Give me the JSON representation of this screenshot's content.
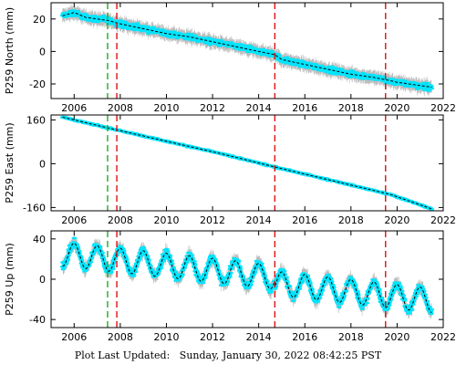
{
  "chart_data": [
    {
      "type": "scatter",
      "ylabel": "P259 North (mm)",
      "xlim": [
        2005.0,
        2022.0
      ],
      "ylim": [
        -29,
        30
      ],
      "xticks": [
        2006,
        2008,
        2010,
        2012,
        2014,
        2016,
        2018,
        2020,
        2022
      ],
      "yticks": [
        20,
        0,
        -20
      ],
      "grid": false,
      "series": [
        {
          "values_note": "",
          "x": [
            2005.5,
            2006.0,
            2006.5,
            2007.0,
            2007.5,
            2008.0,
            2009.0,
            2010.0,
            2011.0,
            2012.0,
            2013.0,
            2014.0,
            2014.7,
            2015.0,
            2016.0,
            2017.0,
            2018.0,
            2019.0,
            2019.7,
            2020.0,
            2021.0,
            2021.5
          ],
          "y": [
            22,
            24,
            21,
            20,
            19,
            17,
            14,
            11,
            9,
            6,
            3,
            0,
            -2,
            -5,
            -8,
            -11,
            -14,
            -16,
            -18,
            -19,
            -21,
            -22
          ]
        }
      ]
    },
    {
      "type": "scatter",
      "ylabel": "P259 East (mm)",
      "xlim": [
        2005.0,
        2022.0
      ],
      "ylim": [
        -172,
        178
      ],
      "xticks": [
        2006,
        2008,
        2010,
        2012,
        2014,
        2016,
        2018,
        2020,
        2022
      ],
      "yticks": [
        160,
        0,
        -160
      ],
      "grid": false,
      "series": [
        {
          "values_note": "",
          "x": [
            2005.5,
            2007.5,
            2010.0,
            2012.5,
            2014.7,
            2017.0,
            2019.7,
            2021.5
          ],
          "y": [
            170,
            130,
            82,
            34,
            -12,
            -58,
            -112,
            -165
          ]
        }
      ]
    },
    {
      "type": "scatter",
      "ylabel": "P259 Up (mm)",
      "xlim": [
        2005.0,
        2022.0
      ],
      "ylim": [
        -48,
        48
      ],
      "xticks": [
        2006,
        2008,
        2010,
        2012,
        2014,
        2016,
        2018,
        2020,
        2022
      ],
      "yticks": [
        40,
        0,
        -40
      ],
      "grid": false,
      "series": [
        {
          "values_note": "",
          "x_start": 2005.5,
          "x_end": 2021.5,
          "base_start": 25,
          "base_end": -15,
          "seasonal_amplitude": 12
        }
      ]
    }
  ],
  "events": {
    "green_dashed": [
      2007.45
    ],
    "red_dashed": [
      2007.85,
      2014.7,
      2019.5
    ]
  },
  "colors": {
    "points": "#00e5ff",
    "errorbars": "#b0b0b0",
    "model": "#000000",
    "event_green": "#22aa22",
    "event_red": "#dd1111"
  },
  "footer": {
    "label": "Plot Last Updated:",
    "timestamp": "Sunday, January 30, 2022 08:42:25 PST"
  }
}
